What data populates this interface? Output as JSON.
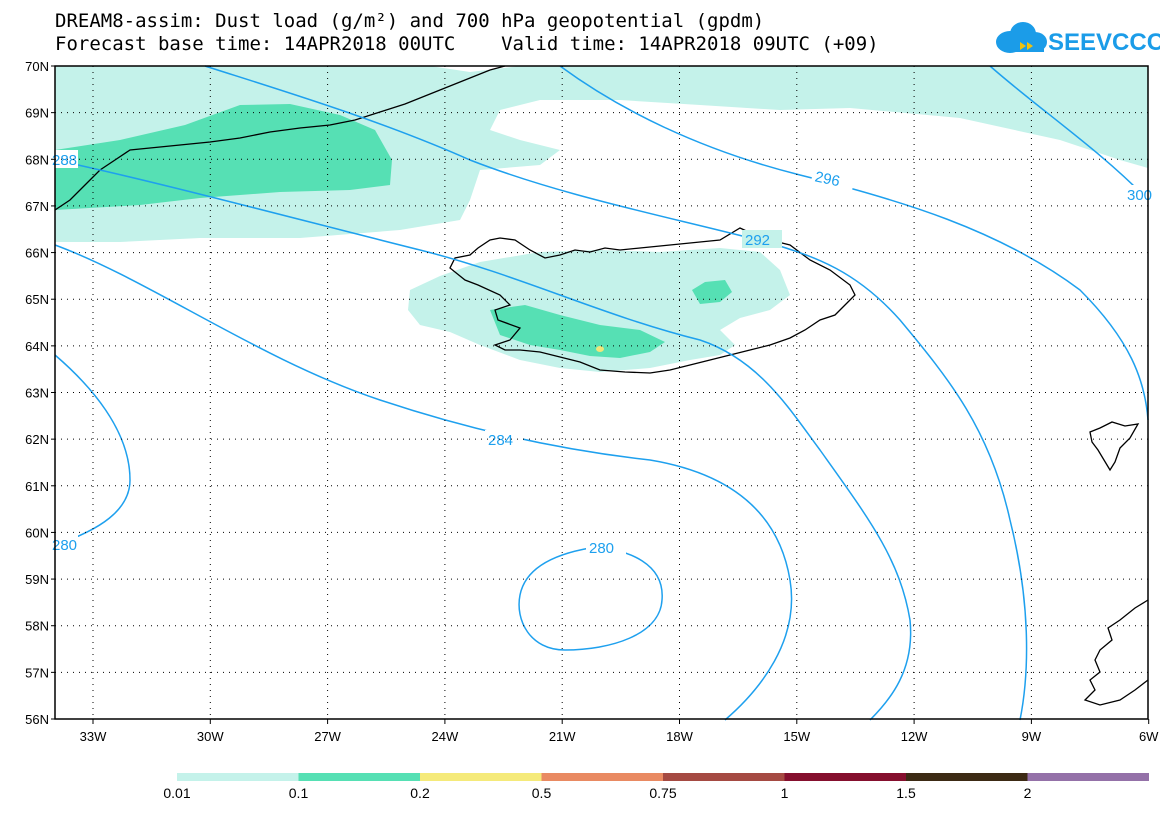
{
  "header": {
    "title_line1": "DREAM8-assim: Dust load (g/m²) and 700 hPa geopotential (gpdm)",
    "title_line2": "Forecast base time: 14APR2018 00UTC    Valid time: 14APR2018 09UTC (+09)",
    "logo_text": "SEEVCCC",
    "logo_icon": "cloud-icon"
  },
  "map": {
    "lat_labels": [
      "70N",
      "69N",
      "68N",
      "67N",
      "66N",
      "65N",
      "64N",
      "63N",
      "62N",
      "61N",
      "60N",
      "59N",
      "58N",
      "57N",
      "56N"
    ],
    "lon_labels": [
      "33W",
      "30W",
      "27W",
      "24W",
      "21W",
      "18W",
      "15W",
      "12W",
      "9W",
      "6W"
    ],
    "contour_labels": [
      "296",
      "292",
      "288",
      "284",
      "280",
      "280",
      "300"
    ],
    "colors": {
      "contour": "#1ea0ee",
      "dust_low": "#c4f2ea",
      "dust_mid": "#56e0b4",
      "dust_high": "#f0e57a",
      "coast": "#000000",
      "grid": "#000000"
    }
  },
  "colorbar": {
    "labels": [
      "0.01",
      "0.1",
      "0.2",
      "0.5",
      "0.75",
      "1",
      "1.5",
      "2"
    ],
    "colors": [
      "#c4f2ea",
      "#56e0b4",
      "#f5ea7a",
      "#e98a62",
      "#a54a42",
      "#850f2e",
      "#3c2a14",
      "#9471a8"
    ]
  }
}
